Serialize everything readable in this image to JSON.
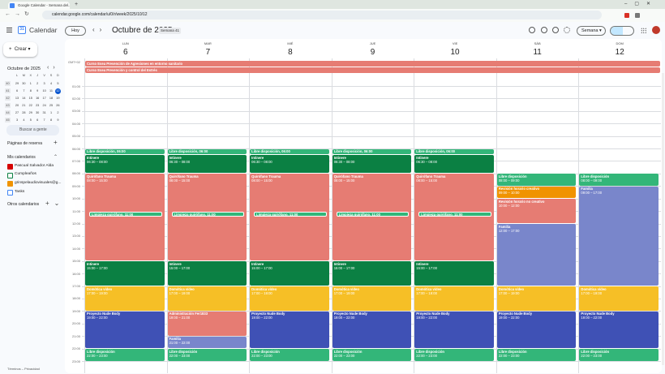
{
  "browser": {
    "tab_title": "Google Calendar - Semana del...",
    "url": "calendar.google.com/calendar/u/0/r/week/2025/10/12"
  },
  "header": {
    "app_name": "Calendar",
    "today": "Hoy",
    "month": "Octubre de 2025",
    "week_chip": "Semana 41",
    "view": "Semana"
  },
  "sidebar": {
    "create": "Crear",
    "mini_calendar": {
      "title": "Octubre de 2025",
      "weekdays": [
        "L",
        "M",
        "X",
        "J",
        "V",
        "S",
        "D"
      ],
      "weeks": [
        {
          "number": 40,
          "days": [
            29,
            30,
            1,
            2,
            3,
            4,
            5
          ]
        },
        {
          "number": 41,
          "days": [
            6,
            7,
            8,
            9,
            10,
            11,
            12
          ]
        },
        {
          "number": 42,
          "days": [
            13,
            14,
            15,
            16,
            17,
            18,
            19
          ]
        },
        {
          "number": 43,
          "days": [
            20,
            21,
            22,
            23,
            24,
            25,
            26
          ]
        },
        {
          "number": 44,
          "days": [
            27,
            28,
            29,
            30,
            31,
            1,
            2
          ]
        },
        {
          "number": 45,
          "days": [
            3,
            4,
            5,
            6,
            7,
            8,
            9
          ]
        }
      ]
    },
    "search": "Buscar a gente",
    "booking": "Páginas de reserva",
    "my_calendars": {
      "title": "Mis calendarios",
      "items": [
        {
          "name": "Pascual Salvador Alda",
          "color": "#d50000",
          "checked": true
        },
        {
          "name": "Cumpleaños",
          "color": "#0b8043",
          "checked": false
        },
        {
          "name": "grinspelaudiovisuales@g...",
          "color": "#f09300",
          "checked": true
        },
        {
          "name": "Tasks",
          "color": "#4285f4",
          "checked": false
        }
      ]
    },
    "other_calendars": "Otros calendarios",
    "footer": "Términos – Privacidad"
  },
  "week": {
    "timezone": "GMT+02",
    "all_day": [
      {
        "title": "Curso Esea Prevención de Agresiones en entorno sanitario",
        "color": "#e67c73"
      },
      {
        "title": "Curso Esea Prevención y control del Estrés",
        "color": "#e67c73"
      }
    ],
    "hours": [
      "01:00",
      "02:00",
      "03:00",
      "04:00",
      "05:00",
      "06:00",
      "07:00",
      "08:00",
      "09:00",
      "10:00",
      "11:00",
      "12:00",
      "13:00",
      "14:00",
      "15:00",
      "16:00",
      "17:00",
      "18:00",
      "19:00",
      "20:00",
      "21:00",
      "22:00",
      "23:00"
    ],
    "days": [
      {
        "weekday": "LUN",
        "date": 6,
        "events": [
          {
            "title": "Libre disposición, 06:00",
            "color": "#33b679"
          },
          {
            "title": "Intinere",
            "time": "06:30 – 08:00",
            "color": "#0b8043"
          },
          {
            "title": "Quirófano Trauma",
            "time": "08:00 – 15:00",
            "color": "#e67c73"
          },
          {
            "title": "Limpieza quirófano, 11:00",
            "color": "#33b679"
          },
          {
            "title": "Intinere",
            "time": "15:00 – 17:00",
            "color": "#0b8043"
          },
          {
            "title": "Domótica vídeo",
            "time": "17:00 – 19:00",
            "color": "#f6bf26"
          },
          {
            "title": "Proyecto Nude Body",
            "time": "19:00 – 22:00",
            "color": "#3f51b5"
          },
          {
            "title": "Libre disposición",
            "time": "22:00 – 23:00",
            "color": "#33b679"
          }
        ]
      },
      {
        "weekday": "MAR",
        "date": 7,
        "events": [
          {
            "title": "Libre disposición, 06:00",
            "color": "#33b679"
          },
          {
            "title": "Intinere",
            "time": "06:30 – 08:00",
            "color": "#0b8043"
          },
          {
            "title": "Quirófano Trauma",
            "time": "08:00 – 15:00",
            "color": "#e67c73"
          },
          {
            "title": "Limpieza quirófano, 11:00",
            "color": "#33b679"
          },
          {
            "title": "Intinere",
            "time": "15:00 – 17:00",
            "color": "#0b8043"
          },
          {
            "title": "Domótica vídeo",
            "time": "17:00 – 19:00",
            "color": "#f6bf26"
          },
          {
            "title": "Administración Fer1833",
            "time": "19:00 – 21:00",
            "color": "#e67c73"
          },
          {
            "title": "Familia",
            "time": "21:00 – 22:00",
            "color": "#7986cb"
          },
          {
            "title": "Libre disposición",
            "time": "22:00 – 23:00",
            "color": "#33b679"
          }
        ]
      },
      {
        "weekday": "MIÉ",
        "date": 8,
        "events": [
          {
            "title": "Libre disposición, 06:00",
            "color": "#33b679"
          },
          {
            "title": "Intinere",
            "time": "06:30 – 08:00",
            "color": "#0b8043"
          },
          {
            "title": "Quirófano Trauma",
            "time": "08:00 – 15:00",
            "color": "#e67c73"
          },
          {
            "title": "Limpieza quirófano, 11:00",
            "color": "#33b679"
          },
          {
            "title": "Intinere",
            "time": "15:00 – 17:00",
            "color": "#0b8043"
          },
          {
            "title": "Domótica vídeo",
            "time": "17:00 – 19:00",
            "color": "#f6bf26"
          },
          {
            "title": "Proyecto Nude Body",
            "time": "19:00 – 22:00",
            "color": "#3f51b5"
          },
          {
            "title": "Libre disposición",
            "time": "22:00 – 23:00",
            "color": "#33b679"
          }
        ]
      },
      {
        "weekday": "JUE",
        "date": 9,
        "events": [
          {
            "title": "Libre disposición, 06:00",
            "color": "#33b679"
          },
          {
            "title": "Intinere",
            "time": "06:30 – 08:00",
            "color": "#0b8043"
          },
          {
            "title": "Quirófano Trauma",
            "time": "08:00 – 15:00",
            "color": "#e67c73"
          },
          {
            "title": "Limpieza quirófano, 11:00",
            "color": "#33b679"
          },
          {
            "title": "Intinere",
            "time": "15:00 – 17:00",
            "color": "#0b8043"
          },
          {
            "title": "Domótica vídeo",
            "time": "17:00 – 19:00",
            "color": "#f6bf26"
          },
          {
            "title": "Proyecto Nude Body",
            "time": "19:00 – 22:00",
            "color": "#3f51b5"
          },
          {
            "title": "Libre disposición",
            "time": "22:00 – 23:00",
            "color": "#33b679"
          }
        ]
      },
      {
        "weekday": "VIE",
        "date": 10,
        "events": [
          {
            "title": "Libre disposición, 06:00",
            "color": "#33b679"
          },
          {
            "title": "Intinere",
            "time": "06:30 – 08:00",
            "color": "#0b8043"
          },
          {
            "title": "Quirófano Trauma",
            "time": "08:00 – 15:00",
            "color": "#e67c73"
          },
          {
            "title": "Limpieza quirófano, 11:00",
            "color": "#33b679"
          },
          {
            "title": "Intinere",
            "time": "15:00 – 17:00",
            "color": "#0b8043"
          },
          {
            "title": "Domótica vídeo",
            "time": "17:00 – 19:00",
            "color": "#f6bf26"
          },
          {
            "title": "Proyecto Nude Body",
            "time": "19:00 – 22:00",
            "color": "#3f51b5"
          },
          {
            "title": "Libre disposición",
            "time": "22:00 – 23:00",
            "color": "#33b679"
          }
        ]
      },
      {
        "weekday": "SÁB",
        "date": 11,
        "events": [
          {
            "title": "Libre disposición",
            "time": "08:00 – 09:00",
            "color": "#33b679"
          },
          {
            "title": "Revisión horario creativo",
            "time": "09:00 – 10:00",
            "color": "#f09300"
          },
          {
            "title": "Revisión horario no creativo",
            "time": "10:00 – 12:00",
            "color": "#e67c73"
          },
          {
            "title": "Familia",
            "time": "12:00 – 17:00",
            "color": "#7986cb"
          },
          {
            "title": "Domótica vídeo",
            "time": "17:00 – 19:00",
            "color": "#f6bf26"
          },
          {
            "title": "Proyecto Nude Body",
            "time": "19:00 – 22:00",
            "color": "#3f51b5"
          },
          {
            "title": "Libre disposición",
            "time": "22:00 – 23:00",
            "color": "#33b679"
          }
        ]
      },
      {
        "weekday": "DOM",
        "date": 12,
        "events": [
          {
            "title": "Libre disposición",
            "time": "08:00 – 09:00",
            "color": "#33b679"
          },
          {
            "title": "Familia",
            "time": "09:00 – 17:00",
            "color": "#7986cb"
          },
          {
            "title": "Domótica vídeo",
            "time": "17:00 – 19:00",
            "color": "#f6bf26"
          },
          {
            "title": "Proyecto Nude Body",
            "time": "19:00 – 22:00",
            "color": "#3f51b5"
          },
          {
            "title": "Libre disposición",
            "time": "22:00 – 23:00",
            "color": "#33b679"
          }
        ]
      }
    ]
  }
}
